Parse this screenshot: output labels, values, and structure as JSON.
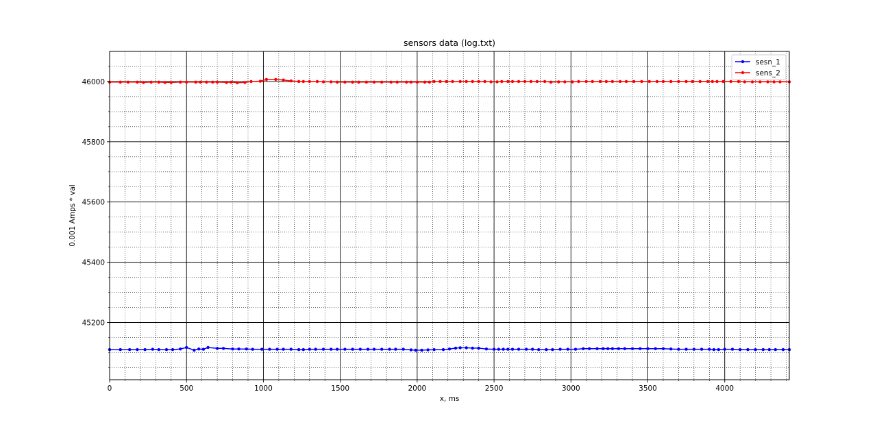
{
  "chart_data": {
    "type": "line",
    "title": "sensors data (log.txt)",
    "xlabel": "x, ms",
    "ylabel": "0.001 Amps * val",
    "xlim": [
      0,
      4420
    ],
    "ylim": [
      45010,
      46100
    ],
    "xticks": [
      0,
      500,
      1000,
      1500,
      2000,
      2500,
      3000,
      3500,
      4000
    ],
    "yticks": [
      45200,
      45400,
      45600,
      45800,
      46000
    ],
    "xticks_minor_step": 100,
    "yticks_minor_step": 50,
    "grid": "major solid, minor dotted",
    "legend_position": "top-right",
    "series": [
      {
        "name": "sesn_1",
        "color": "#0000ff",
        "marker": "dot",
        "x": [
          0,
          70,
          130,
          180,
          230,
          280,
          320,
          370,
          410,
          460,
          500,
          550,
          580,
          610,
          640,
          700,
          740,
          800,
          840,
          890,
          930,
          990,
          1040,
          1090,
          1130,
          1180,
          1230,
          1260,
          1300,
          1340,
          1390,
          1440,
          1480,
          1530,
          1580,
          1630,
          1680,
          1720,
          1770,
          1820,
          1860,
          1910,
          1960,
          1990,
          2030,
          2070,
          2110,
          2170,
          2210,
          2250,
          2280,
          2320,
          2360,
          2400,
          2450,
          2500,
          2530,
          2560,
          2590,
          2620,
          2660,
          2710,
          2750,
          2790,
          2840,
          2880,
          2930,
          2980,
          3030,
          3080,
          3120,
          3170,
          3210,
          3240,
          3270,
          3310,
          3350,
          3400,
          3450,
          3500,
          3550,
          3600,
          3650,
          3700,
          3750,
          3800,
          3850,
          3900,
          3930,
          3960,
          4000,
          4050,
          4100,
          4150,
          4200,
          4250,
          4290,
          4330,
          4380,
          4420
        ],
        "y": [
          45110,
          45110,
          45110,
          45110,
          45110,
          45111,
          45110,
          45110,
          45110,
          45112,
          45117,
          45108,
          45112,
          45111,
          45117,
          45114,
          45114,
          45112,
          45112,
          45112,
          45111,
          45111,
          45111,
          45111,
          45111,
          45111,
          45110,
          45110,
          45111,
          45111,
          45111,
          45111,
          45111,
          45111,
          45111,
          45111,
          45111,
          45111,
          45111,
          45111,
          45111,
          45111,
          45109,
          45108,
          45108,
          45109,
          45110,
          45110,
          45112,
          45115,
          45116,
          45116,
          45115,
          45115,
          45112,
          45111,
          45111,
          45111,
          45111,
          45111,
          45111,
          45111,
          45111,
          45110,
          45110,
          45110,
          45111,
          45111,
          45111,
          45113,
          45113,
          45113,
          45113,
          45113,
          45113,
          45113,
          45113,
          45113,
          45113,
          45113,
          45113,
          45113,
          45112,
          45111,
          45111,
          45111,
          45111,
          45111,
          45110,
          45110,
          45111,
          45111,
          45110,
          45110,
          45110,
          45110,
          45110,
          45110,
          45110,
          45110
        ]
      },
      {
        "name": "sens_2",
        "color": "#ff0000",
        "marker": "dot",
        "x": [
          0,
          70,
          120,
          180,
          220,
          270,
          320,
          360,
          400,
          460,
          500,
          560,
          590,
          630,
          670,
          700,
          760,
          790,
          830,
          880,
          920,
          980,
          1020,
          1080,
          1130,
          1180,
          1230,
          1260,
          1300,
          1350,
          1390,
          1440,
          1480,
          1530,
          1580,
          1620,
          1670,
          1720,
          1770,
          1830,
          1870,
          1930,
          1960,
          2000,
          2050,
          2080,
          2110,
          2150,
          2190,
          2230,
          2280,
          2320,
          2360,
          2400,
          2440,
          2480,
          2520,
          2550,
          2590,
          2620,
          2660,
          2700,
          2740,
          2780,
          2830,
          2870,
          2920,
          2960,
          3010,
          3050,
          3100,
          3140,
          3190,
          3230,
          3270,
          3320,
          3360,
          3410,
          3460,
          3510,
          3560,
          3600,
          3650,
          3700,
          3750,
          3790,
          3840,
          3890,
          3920,
          3950,
          3990,
          4040,
          4090,
          4130,
          4180,
          4230,
          4280,
          4320,
          4360,
          4420
        ],
        "y": [
          45998,
          45998,
          45998,
          45998,
          45997,
          45998,
          45998,
          45997,
          45997,
          45998,
          45998,
          45998,
          45998,
          45998,
          45998,
          45998,
          45997,
          45998,
          45996,
          45997,
          46000,
          46001,
          46007,
          46007,
          46005,
          46002,
          46000,
          46000,
          46000,
          46000,
          45999,
          45999,
          45998,
          45998,
          45998,
          45998,
          45998,
          45998,
          45998,
          45998,
          45998,
          45998,
          45998,
          45998,
          45998,
          45998,
          46000,
          46000,
          46000,
          46000,
          46000,
          46000,
          46000,
          46000,
          46000,
          45999,
          45999,
          46000,
          46000,
          46000,
          46000,
          46000,
          46000,
          46000,
          46000,
          45998,
          45999,
          45999,
          45999,
          46000,
          46000,
          46000,
          46000,
          46000,
          46000,
          46000,
          46000,
          46000,
          46000,
          46000,
          46000,
          46000,
          46000,
          46000,
          46000,
          46000,
          46000,
          46000,
          46000,
          46000,
          46000,
          46000,
          46000,
          45999,
          45999,
          45999,
          45999,
          45999,
          45999,
          45999
        ]
      }
    ]
  }
}
